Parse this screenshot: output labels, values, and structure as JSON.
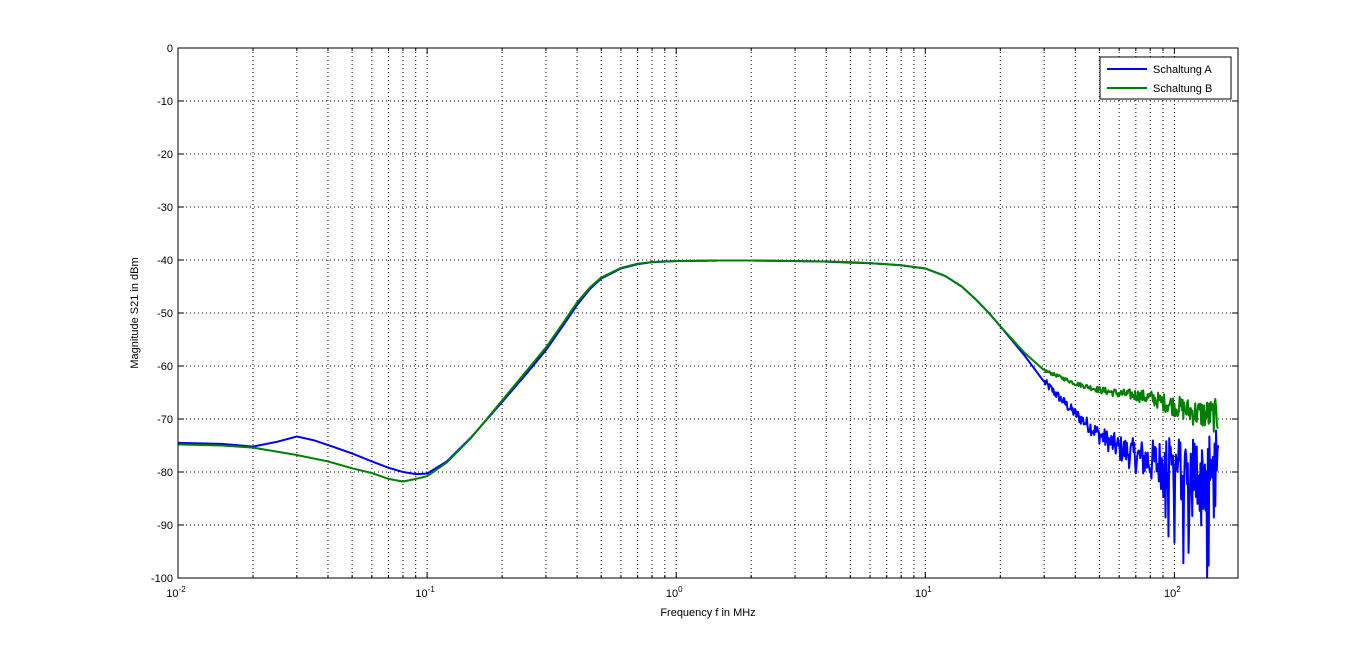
{
  "chart_data": {
    "type": "line",
    "title": "",
    "xlabel": "Frequency f in MHz",
    "ylabel": "Magnitude S21 in dBm",
    "x_scale": "log",
    "xlim": [
      0.01,
      180
    ],
    "ylim": [
      -100,
      0
    ],
    "grid": true,
    "legend_position": "top-right",
    "x_ticks": [
      {
        "value": 0.01,
        "base": "10",
        "exp": "-2"
      },
      {
        "value": 0.1,
        "base": "10",
        "exp": "-1"
      },
      {
        "value": 1,
        "base": "10",
        "exp": "0"
      },
      {
        "value": 10,
        "base": "10",
        "exp": "1"
      },
      {
        "value": 100,
        "base": "10",
        "exp": "2"
      }
    ],
    "y_ticks": [
      0,
      -10,
      -20,
      -30,
      -40,
      -50,
      -60,
      -70,
      -80,
      -90,
      -100
    ],
    "y_tick_labels": [
      "0",
      "-10",
      "-20",
      "-30",
      "-40",
      "-50",
      "-60",
      "-70",
      "-80",
      "-90",
      "-100"
    ],
    "series": [
      {
        "name": "Schaltung A",
        "color": "#0000ff",
        "x": [
          0.01,
          0.015,
          0.02,
          0.025,
          0.03,
          0.035,
          0.04,
          0.05,
          0.06,
          0.07,
          0.08,
          0.09,
          0.1,
          0.12,
          0.15,
          0.2,
          0.25,
          0.3,
          0.35,
          0.4,
          0.45,
          0.5,
          0.6,
          0.7,
          0.8,
          1,
          1.5,
          2,
          3,
          4,
          5,
          6,
          7,
          8,
          10,
          12,
          14,
          16,
          18,
          20,
          25,
          30,
          40,
          50,
          60,
          70,
          80,
          90,
          100,
          120,
          150
        ],
        "y": [
          -74.5,
          -74.7,
          -75.2,
          -74.3,
          -73.3,
          -74.0,
          -74.9,
          -76.5,
          -78.0,
          -79.2,
          -80.0,
          -80.4,
          -80.3,
          -78.0,
          -73.5,
          -66.8,
          -61.5,
          -57.0,
          -52.5,
          -48.5,
          -45.5,
          -43.5,
          -41.6,
          -40.8,
          -40.4,
          -40.2,
          -40.1,
          -40.1,
          -40.2,
          -40.3,
          -40.5,
          -40.6,
          -40.8,
          -41.0,
          -41.6,
          -43.0,
          -45.0,
          -47.5,
          -50.0,
          -52.5,
          -58.0,
          -63.0,
          -69.0,
          -73.0,
          -75.5,
          -77.0,
          -78.0,
          -78.5,
          -79.0,
          -80.0,
          -81.5
        ]
      },
      {
        "name": "Schaltung B",
        "color": "#008000",
        "x": [
          0.01,
          0.015,
          0.02,
          0.03,
          0.04,
          0.05,
          0.06,
          0.07,
          0.08,
          0.09,
          0.1,
          0.12,
          0.15,
          0.2,
          0.25,
          0.3,
          0.35,
          0.4,
          0.45,
          0.5,
          0.6,
          0.7,
          0.8,
          1,
          1.5,
          2,
          3,
          4,
          5,
          6,
          7,
          8,
          10,
          12,
          14,
          16,
          18,
          20,
          25,
          30,
          40,
          50,
          60,
          70,
          80,
          90,
          100,
          120,
          150
        ],
        "y": [
          -74.8,
          -75.0,
          -75.4,
          -76.8,
          -78.0,
          -79.3,
          -80.2,
          -81.3,
          -81.8,
          -81.3,
          -80.8,
          -78.2,
          -73.6,
          -66.5,
          -61.0,
          -56.5,
          -52.0,
          -48.0,
          -45.2,
          -43.3,
          -41.5,
          -40.7,
          -40.4,
          -40.2,
          -40.1,
          -40.1,
          -40.2,
          -40.3,
          -40.4,
          -40.6,
          -40.8,
          -41.0,
          -41.6,
          -43.0,
          -45.0,
          -47.5,
          -50.0,
          -52.5,
          -57.5,
          -60.8,
          -63.3,
          -64.5,
          -65.2,
          -65.5,
          -66.0,
          -66.8,
          -67.5,
          -68.8,
          -69.5
        ]
      }
    ]
  }
}
